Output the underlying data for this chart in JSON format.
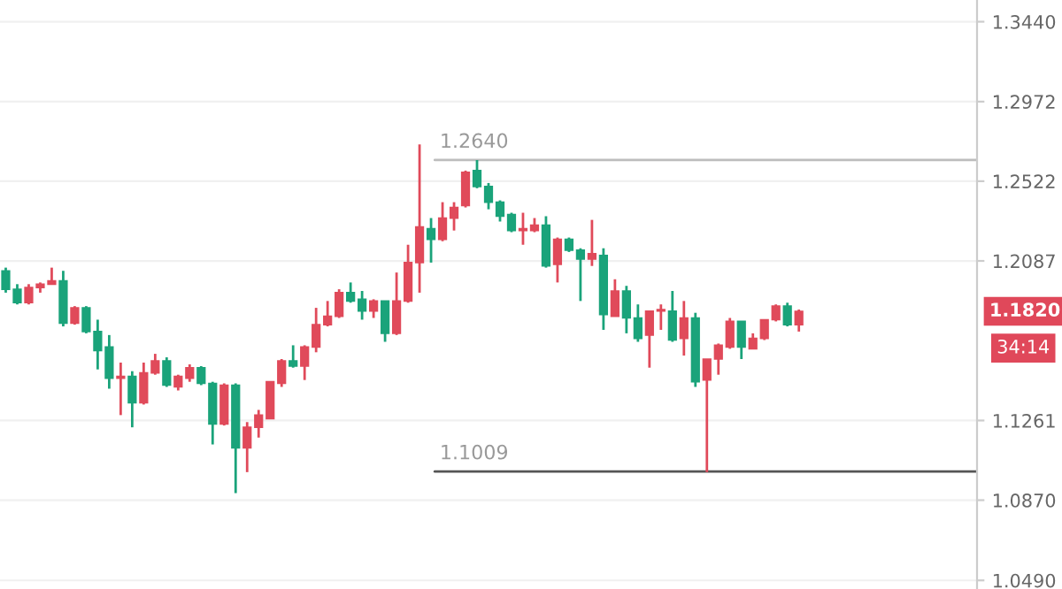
{
  "chart_data": {
    "type": "candlestick",
    "categories": [
      null,
      null,
      null,
      null,
      null,
      null,
      null,
      null,
      null,
      null,
      null,
      null,
      null,
      null,
      null,
      null,
      null,
      null,
      null,
      null,
      null,
      null,
      null,
      null,
      null,
      null,
      null,
      null,
      null,
      null,
      null,
      null,
      null,
      null,
      null,
      null,
      null,
      null,
      null,
      null,
      null,
      null,
      null,
      null,
      null,
      null,
      null,
      null,
      null,
      null,
      null,
      null,
      null,
      null,
      null,
      null,
      null,
      null,
      null,
      null,
      null,
      null,
      null,
      null,
      null,
      null,
      null,
      null,
      null,
      null,
      null,
      null,
      null,
      null,
      null,
      null,
      null,
      null,
      null,
      null,
      null,
      null,
      null,
      null,
      null
    ],
    "ohlc": [
      [
        1.2034,
        1.2051,
        1.1918,
        1.1936
      ],
      [
        1.1936,
        1.1963,
        1.1856,
        1.1865
      ],
      [
        1.1865,
        1.1963,
        1.1856,
        1.1945
      ],
      [
        1.1945,
        1.1972,
        1.1918,
        1.1963
      ],
      [
        1.1963,
        1.2051,
        1.1963,
        1.198
      ],
      [
        1.198,
        1.2034,
        1.1741,
        1.1758
      ],
      [
        1.1758,
        1.1847,
        1.175,
        1.1838
      ],
      [
        1.1838,
        1.1847,
        1.1705,
        1.1714
      ],
      [
        1.1714,
        1.1776,
        1.1519,
        1.1616
      ],
      [
        1.1634,
        1.1696,
        1.1421,
        1.1474
      ],
      [
        1.1474,
        1.1554,
        1.1288,
        1.1483
      ],
      [
        1.1483,
        1.151,
        1.1227,
        1.135
      ],
      [
        1.135,
        1.1554,
        1.1341,
        1.1501
      ],
      [
        1.1501,
        1.1599,
        1.1492,
        1.1563
      ],
      [
        1.1563,
        1.1581,
        1.143,
        1.1439
      ],
      [
        1.143,
        1.1492,
        1.1412,
        1.1483
      ],
      [
        1.1474,
        1.1545,
        1.1456,
        1.1528
      ],
      [
        1.1528,
        1.1536,
        1.1439,
        1.1448
      ],
      [
        1.1448,
        1.1456,
        1.1142,
        1.1244
      ],
      [
        1.1244,
        1.1448,
        1.1236,
        1.1439
      ],
      [
        1.1439,
        1.1448,
        1.0904,
        1.1125
      ],
      [
        1.1125,
        1.1253,
        1.1006,
        1.1227
      ],
      [
        1.1227,
        1.1314,
        1.1176,
        1.1288
      ],
      [
        1.127,
        1.1456,
        1.127,
        1.1456
      ],
      [
        1.1448,
        1.1572,
        1.143,
        1.1563
      ],
      [
        1.1563,
        1.1643,
        1.1528,
        1.1536
      ],
      [
        1.1536,
        1.1643,
        1.1465,
        1.1634
      ],
      [
        1.1634,
        1.1838,
        1.1607,
        1.175
      ],
      [
        1.175,
        1.1874,
        1.1741,
        1.1794
      ],
      [
        1.1794,
        1.1936,
        1.1785,
        1.1918
      ],
      [
        1.1918,
        1.1972,
        1.1865,
        1.1874
      ],
      [
        1.1883,
        1.1927,
        1.1776,
        1.1821
      ],
      [
        1.1821,
        1.1883,
        1.1785,
        1.1874
      ],
      [
        1.1874,
        1.1874,
        1.1661,
        1.1705
      ],
      [
        1.1705,
        1.2025,
        1.1696,
        1.1874
      ],
      [
        1.1874,
        1.2174,
        1.1865,
        1.2078
      ],
      [
        1.2078,
        1.2728,
        1.1918,
        1.2271
      ],
      [
        1.2261,
        1.2319,
        1.2078,
        1.2203
      ],
      [
        1.2203,
        1.2406,
        1.2193,
        1.2319
      ],
      [
        1.2319,
        1.2406,
        1.2251,
        1.2377
      ],
      [
        1.2387,
        1.2581,
        1.2377,
        1.2571
      ],
      [
        1.2581,
        1.264,
        1.2483,
        1.2493
      ],
      [
        1.2493,
        1.2512,
        1.2367,
        1.2406
      ],
      [
        1.2406,
        1.2416,
        1.23,
        1.2329
      ],
      [
        1.2338,
        1.2348,
        1.2242,
        1.2251
      ],
      [
        1.2251,
        1.2348,
        1.2174,
        1.2261
      ],
      [
        1.2251,
        1.2319,
        1.2242,
        1.228
      ],
      [
        1.228,
        1.2329,
        1.2051,
        1.206
      ],
      [
        1.2069,
        1.2213,
        1.1972,
        1.2203
      ],
      [
        1.2203,
        1.2213,
        1.2135,
        1.2145
      ],
      [
        1.2145,
        1.2155,
        1.1874,
        1.2097
      ],
      [
        1.2097,
        1.2309,
        1.206,
        1.2126
      ],
      [
        1.2116,
        1.2155,
        1.1723,
        1.1803
      ],
      [
        1.1794,
        1.1989,
        1.1794,
        1.1927
      ],
      [
        1.1927,
        1.1954,
        1.1705,
        1.1785
      ],
      [
        1.1785,
        1.1856,
        1.1661,
        1.1679
      ],
      [
        1.1696,
        1.1821,
        1.1528,
        1.1821
      ],
      [
        1.1821,
        1.1856,
        1.1723,
        1.1829
      ],
      [
        1.1821,
        1.1927,
        1.1661,
        1.167
      ],
      [
        1.1679,
        1.1874,
        1.159,
        1.1785
      ],
      [
        1.1785,
        1.1812,
        1.143,
        1.1456
      ],
      [
        1.1465,
        1.1572,
        1.1006,
        1.1572
      ],
      [
        1.1572,
        1.1652,
        1.1492,
        1.1643
      ],
      [
        1.1634,
        1.1785,
        1.1625,
        1.1767
      ],
      [
        1.1767,
        1.1767,
        1.1572,
        1.1634
      ],
      [
        1.1625,
        1.1705,
        1.1625,
        1.1679
      ],
      [
        1.1679,
        1.1776,
        1.167,
        1.1776
      ],
      [
        1.1776,
        1.1856,
        1.1767,
        1.1847
      ],
      [
        1.1847,
        1.1865,
        1.1741,
        1.175
      ],
      [
        1.175,
        1.1829,
        1.1714,
        1.182
      ],
      null,
      null,
      null,
      null,
      null,
      null,
      null,
      null,
      null,
      null,
      null,
      null,
      null,
      null,
      null
    ],
    "colors": [
      "#1aa37a",
      "#1aa37a",
      "#e04a5a",
      "#e04a5a",
      "#e04a5a",
      "#1aa37a",
      "#e04a5a",
      "#1aa37a",
      "#1aa37a",
      "#1aa37a",
      "#e04a5a",
      "#1aa37a",
      "#e04a5a",
      "#e04a5a",
      "#1aa37a",
      "#e04a5a",
      "#e04a5a",
      "#1aa37a",
      "#1aa37a",
      "#e04a5a",
      "#1aa37a",
      "#e04a5a",
      "#e04a5a",
      "#e04a5a",
      "#e04a5a",
      "#1aa37a",
      "#e04a5a",
      "#e04a5a",
      "#e04a5a",
      "#e04a5a",
      "#1aa37a",
      "#1aa37a",
      "#e04a5a",
      "#1aa37a",
      "#e04a5a",
      "#e04a5a",
      "#e04a5a",
      "#1aa37a",
      "#e04a5a",
      "#e04a5a",
      "#e04a5a",
      "#1aa37a",
      "#1aa37a",
      "#1aa37a",
      "#1aa37a",
      "#e04a5a",
      "#e04a5a",
      "#1aa37a",
      "#e04a5a",
      "#1aa37a",
      "#1aa37a",
      "#e04a5a",
      "#1aa37a",
      "#e04a5a",
      "#1aa37a",
      "#1aa37a",
      "#e04a5a",
      "#e04a5a",
      "#1aa37a",
      "#e04a5a",
      "#1aa37a",
      "#e04a5a",
      "#e04a5a",
      "#e04a5a",
      "#1aa37a",
      "#e04a5a",
      "#e04a5a",
      "#e04a5a",
      "#1aa37a",
      "#e04a5a",
      null,
      null,
      null,
      null,
      null,
      null,
      null,
      null,
      null,
      null,
      null,
      null,
      null,
      null,
      null
    ],
    "log": true,
    "ylim": [
      1.045,
      1.357
    ],
    "yticks": [
      {
        "value": 1.344,
        "label": "1.3440"
      },
      {
        "value": 1.2972,
        "label": "1.2972"
      },
      {
        "value": 1.2522,
        "label": "1.2522"
      },
      {
        "value": 1.2087,
        "label": "1.2087"
      },
      {
        "value": 1.1261,
        "label": "1.1261"
      },
      {
        "value": 1.087,
        "label": "1.0870"
      },
      {
        "value": 1.049,
        "label": "1.0490"
      }
    ],
    "grid": "y",
    "ref_lines": [
      {
        "axis": "y",
        "value": 1.264,
        "label": "1.2640",
        "color": "#bdbdbd"
      },
      {
        "axis": "y",
        "value": 1.1009,
        "label": "1.1009",
        "color": "#555555"
      }
    ],
    "annotations": [
      "1.1820",
      "34:14"
    ]
  }
}
